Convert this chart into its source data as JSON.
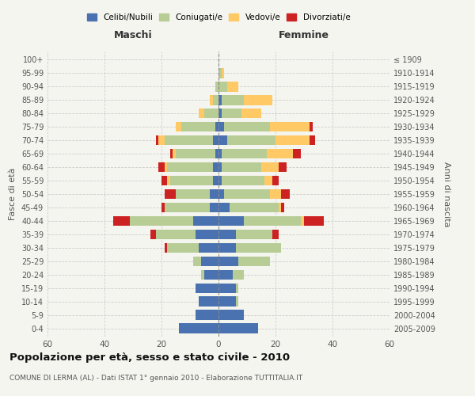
{
  "age_groups": [
    "0-4",
    "5-9",
    "10-14",
    "15-19",
    "20-24",
    "25-29",
    "30-34",
    "35-39",
    "40-44",
    "45-49",
    "50-54",
    "55-59",
    "60-64",
    "65-69",
    "70-74",
    "75-79",
    "80-84",
    "85-89",
    "90-94",
    "95-99",
    "100+"
  ],
  "birth_years": [
    "2005-2009",
    "2000-2004",
    "1995-1999",
    "1990-1994",
    "1985-1989",
    "1980-1984",
    "1975-1979",
    "1970-1974",
    "1965-1969",
    "1960-1964",
    "1955-1959",
    "1950-1954",
    "1945-1949",
    "1940-1944",
    "1935-1939",
    "1930-1934",
    "1925-1929",
    "1920-1924",
    "1915-1919",
    "1910-1914",
    "≤ 1909"
  ],
  "colors": {
    "celibi": "#4a72b0",
    "coniugati": "#b8cc96",
    "vedovi": "#ffc966",
    "divorziati": "#cc2222"
  },
  "maschi": {
    "celibi": [
      14,
      8,
      7,
      8,
      5,
      6,
      7,
      8,
      9,
      3,
      3,
      2,
      2,
      1,
      2,
      1,
      0,
      0,
      0,
      0,
      0
    ],
    "coniugati": [
      0,
      0,
      0,
      0,
      1,
      3,
      11,
      14,
      22,
      16,
      12,
      15,
      16,
      14,
      17,
      12,
      5,
      2,
      1,
      0,
      0
    ],
    "vedovi": [
      0,
      0,
      0,
      0,
      0,
      0,
      0,
      0,
      0,
      0,
      0,
      1,
      1,
      1,
      2,
      2,
      2,
      1,
      0,
      0,
      0
    ],
    "divorziati": [
      0,
      0,
      0,
      0,
      0,
      0,
      1,
      2,
      6,
      1,
      4,
      2,
      2,
      1,
      1,
      0,
      0,
      0,
      0,
      0,
      0
    ]
  },
  "femmine": {
    "celibi": [
      14,
      9,
      6,
      6,
      5,
      7,
      6,
      6,
      9,
      4,
      2,
      1,
      1,
      1,
      3,
      2,
      1,
      1,
      0,
      0,
      0
    ],
    "coniugati": [
      0,
      0,
      1,
      1,
      4,
      11,
      16,
      13,
      20,
      17,
      16,
      15,
      14,
      16,
      17,
      16,
      7,
      8,
      3,
      1,
      0
    ],
    "vedovi": [
      0,
      0,
      0,
      0,
      0,
      0,
      0,
      0,
      1,
      1,
      4,
      3,
      6,
      9,
      12,
      14,
      7,
      10,
      4,
      1,
      0
    ],
    "divorziati": [
      0,
      0,
      0,
      0,
      0,
      0,
      0,
      2,
      7,
      1,
      3,
      2,
      3,
      3,
      2,
      1,
      0,
      0,
      0,
      0,
      0
    ]
  },
  "title": "Popolazione per età, sesso e stato civile - 2010",
  "subtitle": "COMUNE DI LERMA (AL) - Dati ISTAT 1° gennaio 2010 - Elaborazione TUTTITALIA.IT",
  "xlabel_left": "Maschi",
  "xlabel_right": "Femmine",
  "ylabel_left": "Fasce di età",
  "ylabel_right": "Anni di nascita",
  "xlim": 60,
  "legend_labels": [
    "Celibi/Nubili",
    "Coniugati/e",
    "Vedovi/e",
    "Divorziati/e"
  ],
  "background_color": "#f5f5f0"
}
